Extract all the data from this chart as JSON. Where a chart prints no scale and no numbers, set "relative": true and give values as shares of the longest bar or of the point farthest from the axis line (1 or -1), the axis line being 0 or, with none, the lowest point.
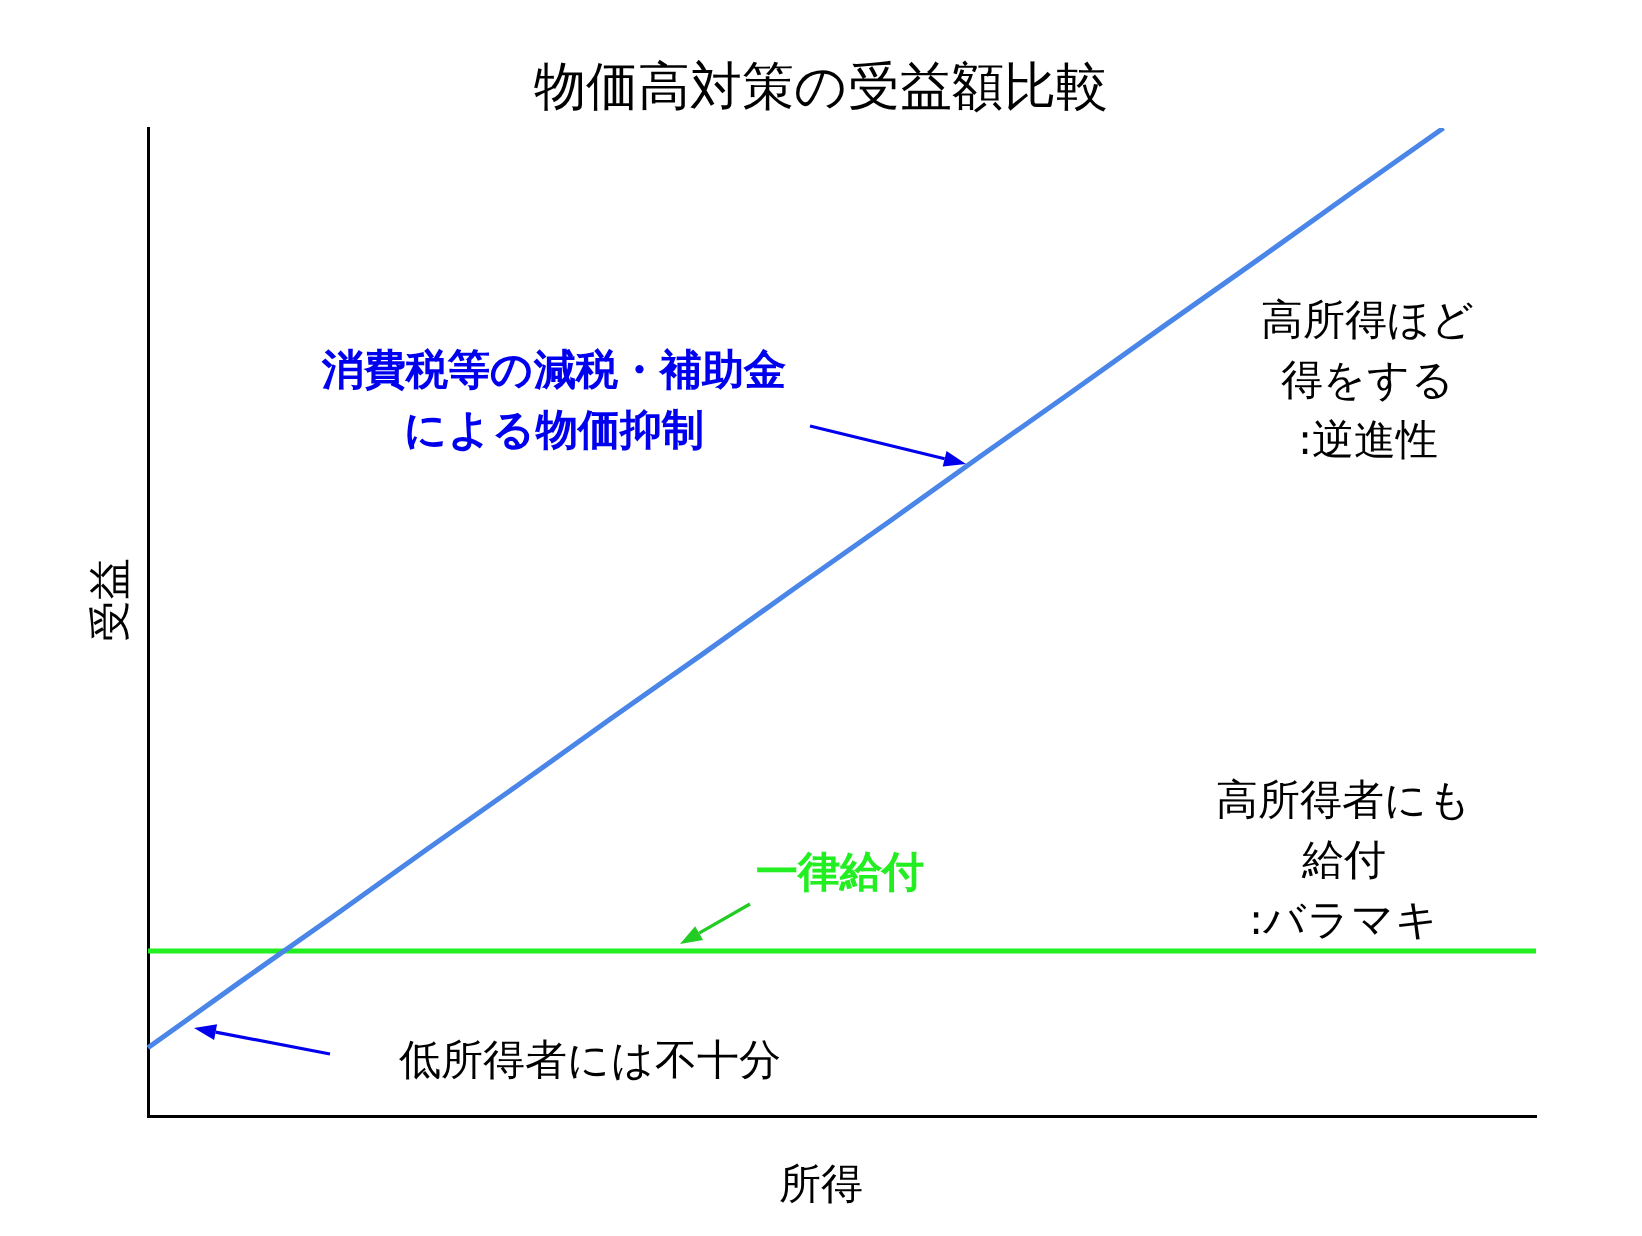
{
  "chart_data": {
    "type": "line",
    "title": "物価高対策の受益額比較",
    "xlabel": "所得",
    "ylabel": "受益",
    "relative": true,
    "grid": false,
    "legend": false,
    "marker": "none",
    "line_style": "solid",
    "categories": [
      null,
      null,
      null,
      null,
      null,
      null,
      null,
      null,
      null,
      null,
      null,
      null,
      null,
      null,
      null,
      null
    ],
    "series": [
      {
        "color": "#4a86e8",
        "values": [
          0.069,
          0.136,
          0.202,
          0.269,
          0.335,
          0.402,
          0.468,
          0.535,
          0.601,
          0.668,
          0.734,
          0.801,
          0.867,
          0.934,
          1.0,
          null
        ]
      },
      {
        "color": "#22ee22",
        "values": [
          0.167,
          0.167,
          0.167,
          0.167,
          0.167,
          0.167,
          0.167,
          0.167,
          0.167,
          0.167,
          0.167,
          0.167,
          0.167,
          0.167,
          0.167,
          0.167
        ]
      }
    ],
    "annotations": [
      "消費税等の減税・補助金による物価抑制",
      "高所得ほど得をする",
      ":逆進性",
      "一律給付",
      "高所得者にも給付",
      ":バラマキ",
      "低所得者には不十分"
    ]
  }
}
